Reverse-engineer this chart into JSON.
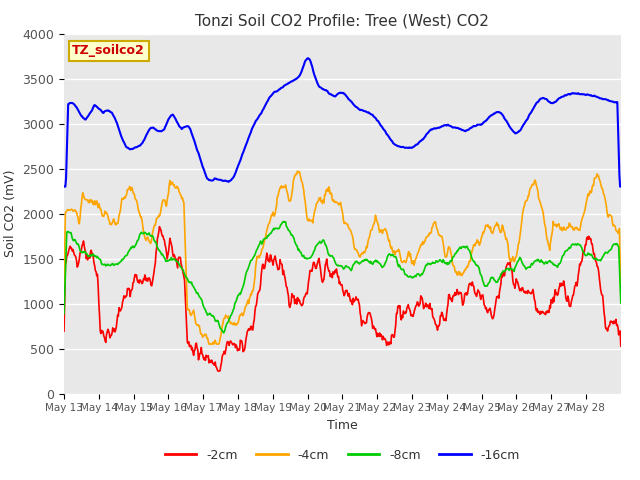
{
  "title": "Tonzi Soil CO2 Profile: Tree (West) CO2",
  "ylabel": "Soil CO2 (mV)",
  "xlabel": "Time",
  "legend_label": "TZ_soilco2",
  "ylim": [
    0,
    4000
  ],
  "bg_color": "#e8e8e8",
  "fig_color": "#ffffff",
  "series": {
    "-2cm": {
      "color": "#ff0000"
    },
    "-4cm": {
      "color": "#ffa500"
    },
    "-8cm": {
      "color": "#00cc00"
    },
    "-16cm": {
      "color": "#0000ff"
    }
  },
  "xtick_labels": [
    "May 13",
    "May 14",
    "May 15",
    "May 16",
    "May 17",
    "May 18",
    "May 19",
    "May 20",
    "May 21",
    "May 22",
    "May 23",
    "May 24",
    "May 25",
    "May 26",
    "May 27",
    "May 28"
  ],
  "ytick_vals": [
    0,
    500,
    1000,
    1500,
    2000,
    2500,
    3000,
    3500,
    4000
  ]
}
